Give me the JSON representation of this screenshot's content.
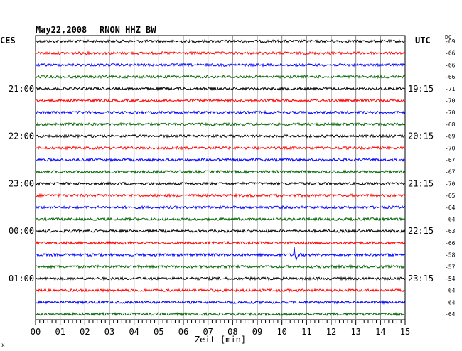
{
  "header": {
    "date": "May22,2008",
    "station": "RNON HHZ BW",
    "left_zone": "CES",
    "right_zone": "UTC",
    "dc_header": "DC"
  },
  "footer": {
    "mark": "x"
  },
  "chart_data": {
    "type": "line",
    "title": "May22,2008   RNON HHZ BW",
    "xlabel": "Zeit [min]",
    "xlim": [
      0,
      15
    ],
    "x_ticks": [
      "00",
      "01",
      "02",
      "03",
      "04",
      "05",
      "06",
      "07",
      "08",
      "09",
      "10",
      "11",
      "12",
      "13",
      "14",
      "15"
    ],
    "grid": true,
    "trace_colors": [
      "#000000",
      "#ff0000",
      "#0000ff",
      "#006400"
    ],
    "left_time_labels": [
      "21:00",
      "22:00",
      "23:00",
      "00:00",
      "01:00"
    ],
    "right_time_labels": [
      "19:15",
      "20:15",
      "21:15",
      "22:15",
      "23:15"
    ],
    "left_label_traces": [
      4,
      8,
      12,
      16,
      20
    ],
    "dc_offsets": [
      "-69",
      "-66",
      "-66",
      "-66",
      "-71",
      "-70",
      "-70",
      "-68",
      "-69",
      "-70",
      "-67",
      "-67",
      "-70",
      "-65",
      "-64",
      "-64",
      "-63",
      "-66",
      "-58",
      "-57",
      "-54",
      "-64",
      "-64",
      "-64"
    ],
    "event": {
      "trace": 18,
      "minute": 10.5
    }
  }
}
